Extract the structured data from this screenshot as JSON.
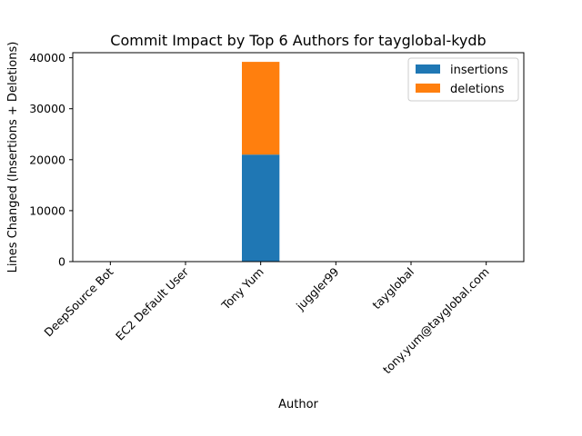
{
  "chart_data": {
    "type": "bar",
    "stacked": true,
    "title": "Commit Impact by Top 6 Authors for tayglobal-kydb",
    "xlabel": "Author",
    "ylabel": "Lines Changed (Insertions + Deletions)",
    "categories": [
      "DeepSource Bot",
      "EC2 Default User",
      "Tony Yum",
      "juggler99",
      "tayglobal",
      "tony.yum@tayglobal.com"
    ],
    "series": [
      {
        "name": "insertions",
        "color": "#1f77b4",
        "values": [
          0,
          0,
          21000,
          0,
          0,
          0
        ]
      },
      {
        "name": "deletions",
        "color": "#ff7f0e",
        "values": [
          0,
          0,
          18200,
          0,
          0,
          0
        ]
      }
    ],
    "ylim": [
      0,
      41000
    ],
    "yticks": [
      0,
      10000,
      20000,
      30000,
      40000
    ],
    "grid": false,
    "legend_position": "top-right"
  }
}
